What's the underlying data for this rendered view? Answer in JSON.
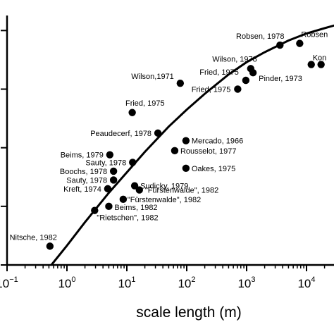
{
  "chart_data": {
    "type": "scatter",
    "title": "",
    "xlabel": "scale length (m)",
    "ylabel": "",
    "x_scale": "log",
    "xlim": [
      0.1,
      30000
    ],
    "ylim": [
      0,
      4.1
    ],
    "grid": false,
    "x_ticks": [
      {
        "value": 0.1,
        "base": "10",
        "exp": "−1"
      },
      {
        "value": 1,
        "base": "10",
        "exp": "0"
      },
      {
        "value": 10,
        "base": "10",
        "exp": "1"
      },
      {
        "value": 100,
        "base": "10",
        "exp": "2"
      },
      {
        "value": 1000,
        "base": "10",
        "exp": "3"
      },
      {
        "value": 10000,
        "base": "10",
        "exp": "4"
      }
    ],
    "y_ticks": [
      0,
      1,
      2,
      3,
      4
    ],
    "points": [
      {
        "label": "Nitsche, 1982",
        "x": 0.52,
        "y": 0.32
      },
      {
        "label": "\"Rietschen\", 1982",
        "x": 2.9,
        "y": 0.93
      },
      {
        "label": "Beims, 1982",
        "x": 5.0,
        "y": 1.0
      },
      {
        "label": "\"Fürstenwalde\", 1982",
        "x": 8.7,
        "y": 1.12
      },
      {
        "label": "\"Fürstenwalde\", 1982",
        "x": 16.2,
        "y": 1.28
      },
      {
        "label": "Sudicky, 1979",
        "x": 13.5,
        "y": 1.35
      },
      {
        "label": "Kreft, 1974",
        "x": 4.8,
        "y": 1.3
      },
      {
        "label": "Sauty, 1978",
        "x": 6.0,
        "y": 1.45
      },
      {
        "label": "Boochs, 1978",
        "x": 6.0,
        "y": 1.6
      },
      {
        "label": "Sauty, 1978",
        "x": 12.5,
        "y": 1.75
      },
      {
        "label": "Beims, 1979",
        "x": 5.2,
        "y": 1.88
      },
      {
        "label": "Oakes, 1975",
        "x": 97,
        "y": 1.65
      },
      {
        "label": "Rousselot, 1977",
        "x": 63,
        "y": 1.95
      },
      {
        "label": "Mercado, 1966",
        "x": 97,
        "y": 2.12
      },
      {
        "label": "Peaudecerf, 1978",
        "x": 33,
        "y": 2.25
      },
      {
        "label": "Fried, 1975",
        "x": 12.3,
        "y": 2.6
      },
      {
        "label": "Wilson,1971",
        "x": 78,
        "y": 3.1
      },
      {
        "label": "Fried, 1975",
        "x": 710,
        "y": 3.0
      },
      {
        "label": "Fried, 1975",
        "x": 970,
        "y": 3.15
      },
      {
        "label": "Wilson, 1978",
        "x": 1170,
        "y": 3.35
      },
      {
        "label": "Pinder, 1973",
        "x": 1280,
        "y": 3.28
      },
      {
        "label": "Robsen, 1978",
        "x": 3600,
        "y": 3.75
      },
      {
        "label": "Robsen",
        "x": 7700,
        "y": 3.78
      },
      {
        "label": "Kon",
        "x": 12000,
        "y": 3.42
      },
      {
        "label": "",
        "x": 17500,
        "y": 3.42
      }
    ],
    "fit_curve": {
      "x": [
        0.55,
        1,
        2,
        5,
        10,
        20,
        50,
        100,
        200,
        500,
        1000,
        2000,
        5000,
        10000,
        20000,
        30000
      ],
      "y": [
        0,
        0.33,
        0.73,
        1.23,
        1.58,
        1.93,
        2.36,
        2.65,
        2.92,
        3.25,
        3.46,
        3.63,
        3.83,
        3.95,
        4.04,
        4.09
      ]
    }
  }
}
